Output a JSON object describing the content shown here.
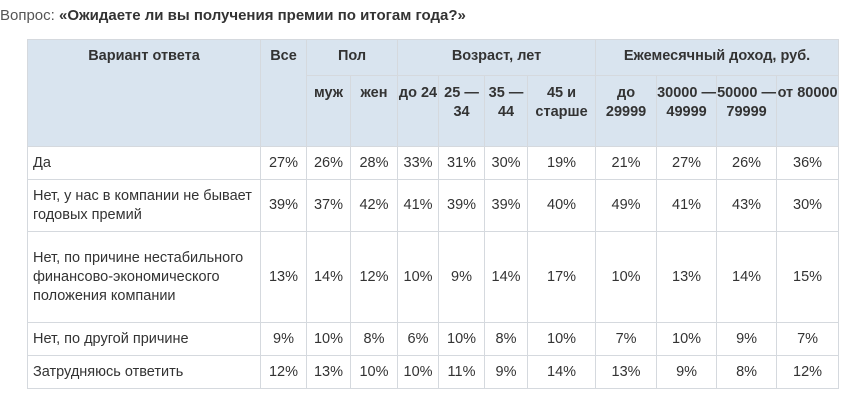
{
  "question": {
    "label": "Вопрос:",
    "text": "«Ожидаете ли вы получения премии по итогам года?»"
  },
  "headers": {
    "variant": "Вариант ответа",
    "all": "Все",
    "gender": "Пол",
    "age": "Возраст, лет",
    "income": "Ежемесячный доход, руб.",
    "sub": [
      "муж",
      "жен",
      "до 24",
      "25 — 34",
      "35 — 44",
      "45 и старше",
      "до 29999",
      "30000 — 49999",
      "50000 — 79999",
      "от 80000"
    ]
  },
  "rows": [
    {
      "answer": "Да",
      "values": [
        "27%",
        "26%",
        "28%",
        "33%",
        "31%",
        "30%",
        "19%",
        "21%",
        "27%",
        "26%",
        "36%"
      ]
    },
    {
      "answer": "Нет, у нас в компании не бывает годовых премий",
      "values": [
        "39%",
        "37%",
        "42%",
        "41%",
        "39%",
        "39%",
        "40%",
        "49%",
        "41%",
        "43%",
        "30%"
      ]
    },
    {
      "answer": "Нет, по причине нестабильного финансово-экономического положения компании",
      "values": [
        "13%",
        "14%",
        "12%",
        "10%",
        "9%",
        "14%",
        "17%",
        "10%",
        "13%",
        "14%",
        "15%"
      ]
    },
    {
      "answer": "Нет, по другой причине",
      "values": [
        "9%",
        "10%",
        "8%",
        "6%",
        "10%",
        "8%",
        "10%",
        "7%",
        "10%",
        "9%",
        "7%"
      ]
    },
    {
      "answer": "Затрудняюсь ответить",
      "values": [
        "12%",
        "13%",
        "10%",
        "10%",
        "11%",
        "9%",
        "14%",
        "13%",
        "9%",
        "8%",
        "12%"
      ]
    }
  ],
  "colors": {
    "header_bg": "#d9e4ef",
    "border": "#d5d9de",
    "text": "#333333"
  }
}
